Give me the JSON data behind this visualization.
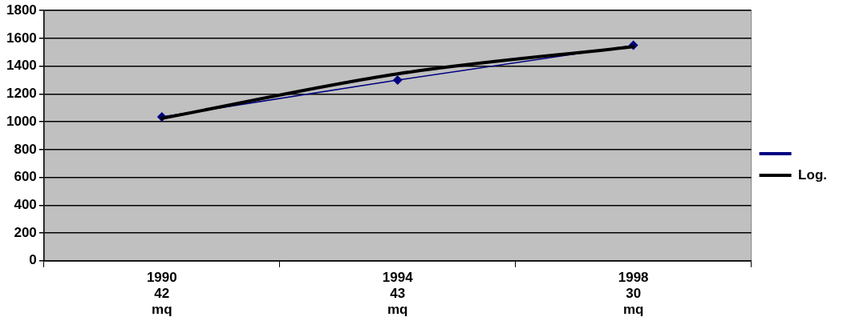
{
  "chart_data": {
    "type": "line",
    "categories": [
      "1990\n42\nmq",
      "1994\n43\nmq",
      "1998\n30\nmq"
    ],
    "series": [
      {
        "color": "#000080",
        "values": [
          1035,
          1300,
          1550
        ],
        "marker": "diamond"
      },
      {
        "name": "Log.",
        "color": "#000000",
        "values": [
          1025,
          1345,
          1540
        ],
        "marker": "none"
      }
    ],
    "ylim": [
      0,
      1800
    ],
    "yticks": [
      0,
      200,
      400,
      600,
      800,
      1000,
      1200,
      1400,
      1600,
      1800
    ],
    "grid": "y",
    "legend": "right"
  }
}
